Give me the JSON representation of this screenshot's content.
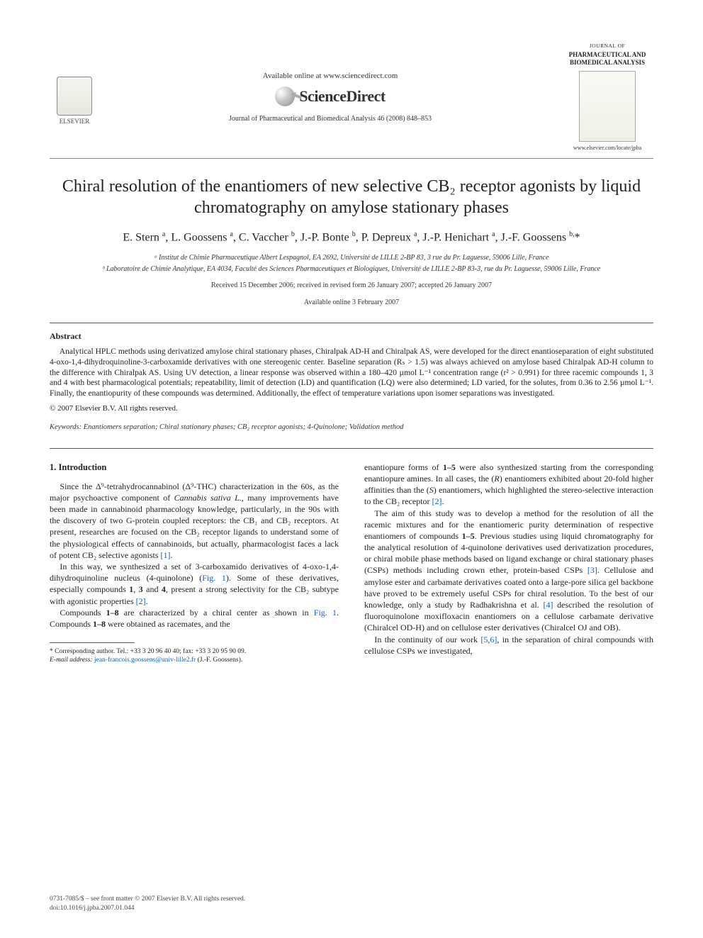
{
  "header": {
    "elsevier_label": "ELSEVIER",
    "available_online": "Available online at www.sciencedirect.com",
    "sd_brand": "ScienceDirect",
    "journal_ref": "Journal of Pharmaceutical and Biomedical Analysis 46 (2008) 848–853",
    "journal_of": "JOURNAL OF",
    "journal_name": "PHARMACEUTICAL AND BIOMEDICAL ANALYSIS",
    "journal_url": "www.elsevier.com/locate/jpba"
  },
  "title": "Chiral resolution of the enantiomers of new selective CB₂ receptor agonists by liquid chromatography on amylose stationary phases",
  "authors_html": "E. Stern <sup>a</sup>, L. Goossens <sup>a</sup>, C. Vaccher <sup>b</sup>, J.-P. Bonte <sup>b</sup>, P. Depreux <sup>a</sup>, J.-P. Henichart <sup>a</sup>, J.-F. Goossens <sup>b,</sup>*",
  "affiliations": [
    "ᵃ Institut de Chimie Pharmaceutique Albert Lespagnol, EA 2692, Université de LILLE 2-BP 83, 3 rue du Pr. Laguesse, 59006 Lille, France",
    "ᵇ Laboratoire de Chimie Analytique, EA 4034, Faculté des Sciences Pharmaceutiques et Biologiques, Université de LILLE 2-BP 83-3, rue du Pr. Laguesse, 59006 Lille, France"
  ],
  "dates": [
    "Received 15 December 2006; received in revised form 26 January 2007; accepted 26 January 2007",
    "Available online 3 February 2007"
  ],
  "abstract": {
    "heading": "Abstract",
    "body": "Analytical HPLC methods using derivatized amylose chiral stationary phases, Chiralpak AD-H and Chiralpak AS, were developed for the direct enantioseparation of eight substituted 4-oxo-1,4-dihydroquinoline-3-carboxamide derivatives with one stereogenic center. Baseline separation (Rₛ > 1.5) was always achieved on amylose based Chiralpak AD-H column to the difference with Chiralpak AS. Using UV detection, a linear response was observed within a 180–420 µmol L⁻¹ concentration range (r² > 0.991) for three racemic compounds 1, 3 and 4 with best pharmacological potentials; repeatability, limit of detection (LD) and quantification (LQ) were also determined; LD varied, for the solutes, from 0.36 to 2.56 µmol L⁻¹. Finally, the enantiopurity of these compounds was determined. Additionally, the effect of temperature variations upon isomer separations was investigated.",
    "copyright": "© 2007 Elsevier B.V. All rights reserved."
  },
  "keywords": {
    "label": "Keywords:",
    "text": "Enantiomers separation; Chiral stationary phases; CB₂ receptor agonists; 4-Quinolone; Validation method"
  },
  "intro": {
    "heading": "1.  Introduction",
    "left_paras": [
      "Since the Δ⁹-tetrahydrocannabinol (Δ⁹-THC) characterization in the 60s, as the major psychoactive component of <i>Cannabis sativa L.</i>, many improvements have been made in cannabinoid pharmacology knowledge, particularly, in the 90s with the discovery of two G-protein coupled receptors: the CB₁ and CB₂ receptors. At present, researches are focused on the CB₂ receptor ligands to understand some of the physiological effects of cannabinoids, but actually, pharmacologist faces a lack of potent CB₂ selective agonists <span class=\"ref-link\">[1]</span>.",
      "In this way, we synthesized a set of 3-carboxamido derivatives of 4-oxo-1,4-dihydroquinoline nucleus (4-quinolone) (<span class=\"ref-link\">Fig. 1</span>). Some of these derivatives, especially compounds <b>1</b>, <b>3</b> and <b>4</b>, present a strong selectivity for the CB₂ subtype with agonistic properties <span class=\"ref-link\">[2]</span>.",
      "Compounds <b>1–8</b> are characterized by a chiral center as shown in <span class=\"ref-link\">Fig. 1</span>. Compounds <b>1–8</b> were obtained as racemates, and the"
    ],
    "right_paras": [
      "enantiopure forms of <b>1–5</b> were also synthesized starting from the corresponding enantiopure amines. In all cases, the (<i>R</i>) enantiomers exhibited about 20-fold higher affinities than the (<i>S</i>) enantiomers, which highlighted the stereo-selective interaction to the CB₂ receptor <span class=\"ref-link\">[2]</span>.",
      "The aim of this study was to develop a method for the resolution of all the racemic mixtures and for the enantiomeric purity determination of respective enantiomers of compounds <b>1–5</b>. Previous studies using liquid chromatography for the analytical resolution of 4-quinolone derivatives used derivatization procedures, or chiral mobile phase methods based on ligand exchange or chiral stationary phases (CSPs) methods including crown ether, protein-based CSPs <span class=\"ref-link\">[3]</span>. Cellulose and amylose ester and carbamate derivatives coated onto a large-pore silica gel backbone have proved to be extremely useful CSPs for chiral resolution. To the best of our knowledge, only a study by Radhakrishna et al. <span class=\"ref-link\">[4]</span> described the resolution of fluoroquinolone moxifloxacin enantiomers on a cellulose carbamate derivative (Chiralcel OD-H) and on cellulose ester derivatives (Chiralcel OJ and OB).",
      "In the continuity of our work <span class=\"ref-link\">[5,6]</span>, in the separation of chiral compounds with cellulose CSPs we investigated,"
    ]
  },
  "footnote": {
    "corr": "* Corresponding author. Tel.: +33 3 20 96 40 40; fax: +33 3 20 95 90 09.",
    "email_label": "E-mail address:",
    "email": "jean-francois.goossens@univ-lille2.fr",
    "email_suffix": "(J.-F. Goossens)."
  },
  "footer": {
    "line1": "0731-7085/$ – see front matter © 2007 Elsevier B.V. All rights reserved.",
    "line2": "doi:10.1016/j.jpba.2007.01.044"
  },
  "colors": {
    "text": "#222222",
    "link": "#1060c0",
    "rule": "#555555",
    "background": "#ffffff"
  },
  "typography": {
    "title_fontsize_pt": 18,
    "authors_fontsize_pt": 12,
    "body_fontsize_pt": 9,
    "abstract_fontsize_pt": 8.5,
    "footnote_fontsize_pt": 7,
    "font_family": "serif"
  }
}
